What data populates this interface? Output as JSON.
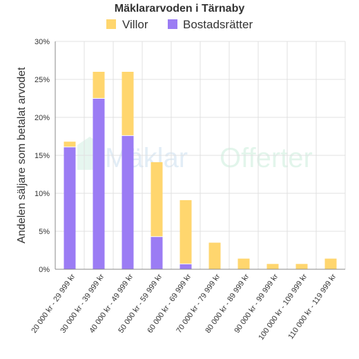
{
  "chart_data": {
    "type": "bar",
    "stacked": true,
    "title": "Mäklararvoden i Tärnaby",
    "xlabel": "",
    "ylabel": "Andelen säljare som betalat arvodet",
    "ylim": [
      0,
      30
    ],
    "yticks": [
      "0%",
      "5%",
      "10%",
      "15%",
      "20%",
      "25%",
      "30%"
    ],
    "grid": true,
    "legend_position": "top-center",
    "categories": [
      "20 000 kr - 29 999 kr",
      "30 000 kr - 39 999 kr",
      "40 000 kr - 49 999 kr",
      "50 000 kr - 59 999 kr",
      "60 000 kr - 69 999 kr",
      "70 000 kr - 79 999 kr",
      "80 000 kr - 89 999 kr",
      "90 000 kr - 99 999 kr",
      "100 000 kr - 109 999 kr",
      "110 000 kr - 119 999 kr"
    ],
    "series": [
      {
        "name": "Bostadsrätter",
        "color": "#9b7cf4",
        "values": [
          16.1,
          22.5,
          17.6,
          4.3,
          0.7,
          0,
          0,
          0,
          0,
          0
        ]
      },
      {
        "name": "Villor",
        "color": "#ffd66e",
        "values": [
          0.7,
          3.5,
          8.4,
          9.8,
          8.4,
          3.5,
          1.4,
          0.7,
          0.7,
          1.4
        ]
      }
    ],
    "legend_order": [
      "Villor",
      "Bostadsrätter"
    ]
  },
  "watermark": {
    "part1": "Mäklar",
    "part2": "Offerter"
  }
}
